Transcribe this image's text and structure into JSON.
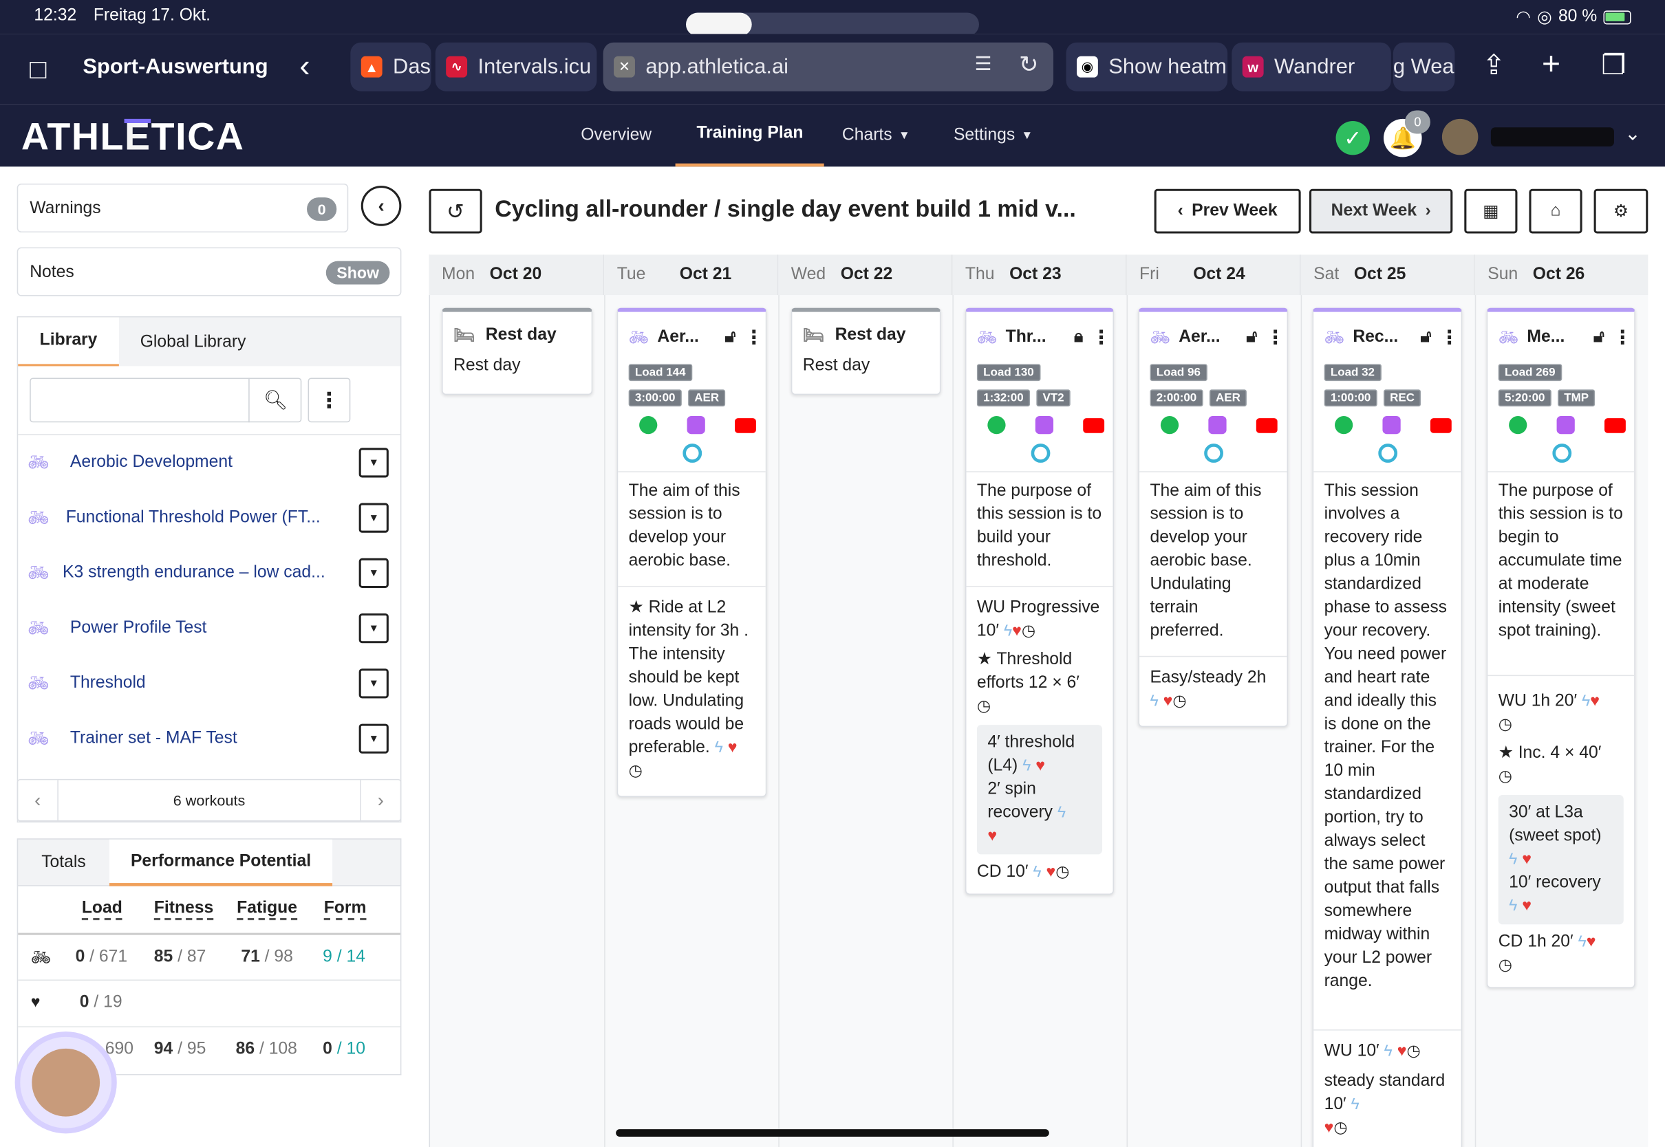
{
  "status_bar": {
    "time": "12:32",
    "date": "Freitag 17. Okt.",
    "battery": "80 %"
  },
  "browser": {
    "tab_group_title": "Sport-Auswertung",
    "tabs": [
      {
        "label": "Das",
        "color": "#ff5a1f"
      },
      {
        "label": "Intervals.icu",
        "color": "#d81b3a"
      },
      {
        "label": "app.athletica.ai",
        "color": "#777777"
      },
      {
        "label": "Show heatm",
        "color": "#ffffff"
      },
      {
        "label": "Wandrer",
        "color": "#c2185b"
      },
      {
        "label": "g Wea",
        "color": "#444444"
      }
    ]
  },
  "app": {
    "logo": "ATHLETICA",
    "nav": [
      {
        "label": "Overview"
      },
      {
        "label": "Training Plan"
      },
      {
        "label": "Charts"
      },
      {
        "label": "Settings"
      }
    ],
    "notification_count": "0"
  },
  "left": {
    "warnings_label": "Warnings",
    "warnings_count": "0",
    "notes_label": "Notes",
    "notes_button": "Show",
    "lib_tabs": [
      "Library",
      "Global Library"
    ],
    "search_placeholder": "",
    "library_items": [
      "Aerobic Development",
      "Functional Threshold Power (FT...",
      "K3 strength endurance – low cad...",
      "Power Profile Test",
      "Threshold",
      "Trainer set - MAF Test"
    ],
    "pager_text": "6 workouts",
    "perf_tabs": [
      "Totals",
      "Performance Potential"
    ],
    "perf_headers": [
      "Load",
      "Fitness",
      "Fatigue",
      "Form"
    ],
    "perf_rows": [
      {
        "icon": "bike-icon",
        "load_a": "0",
        "load_b": "671",
        "fit_a": "85",
        "fit_b": "87",
        "fat_a": "71",
        "fat_b": "98",
        "form_a": "9",
        "form_b": "14"
      },
      {
        "icon": "heart-rate-icon",
        "load_a": "0",
        "load_b": "19",
        "fit_a": "",
        "fit_b": "",
        "fat_a": "",
        "fat_b": "",
        "form_a": "",
        "form_b": ""
      },
      {
        "icon": "total-icon",
        "load_a": "",
        "load_b": "690",
        "fit_a": "94",
        "fit_b": "95",
        "fat_a": "86",
        "fat_b": "108",
        "form_a": "0",
        "form_b": "10"
      }
    ]
  },
  "plan": {
    "title": "Cycling all-rounder / single day event build 1 mid v...",
    "prev_week": "Prev Week",
    "next_week": "Next Week",
    "days": [
      {
        "dow": "Mon",
        "date": "Oct 20"
      },
      {
        "dow": "Tue",
        "date": "Oct 21"
      },
      {
        "dow": "Wed",
        "date": "Oct 22"
      },
      {
        "dow": "Thu",
        "date": "Oct 23"
      },
      {
        "dow": "Fri",
        "date": "Oct 24"
      },
      {
        "dow": "Sat",
        "date": "Oct 25"
      },
      {
        "dow": "Sun",
        "date": "Oct 26"
      }
    ],
    "rest_title": "Rest day",
    "rest_text": "Rest day",
    "workouts": [
      {
        "name": "Aer...",
        "load": "Load 144",
        "dur": "3:00:00",
        "zone": "AER",
        "desc": "The aim of this session is to develop your aerobic base.",
        "step1": "Ride at L2 intensity for 3h . The intensity should be kept low. Undulating roads would be preferable."
      },
      {
        "name": "Thr...",
        "load": "Load 130",
        "dur": "1:32:00",
        "zone": "VT2",
        "desc": "The purpose of this session is to build your threshold.",
        "wu": "WU Progressive 10′",
        "main": "Threshold efforts 12 × 6′",
        "sub1": "4′ threshold (L4)",
        "sub2": "2′ spin recovery",
        "cd": "CD 10′"
      },
      {
        "name": "Aer...",
        "load": "Load 96",
        "dur": "2:00:00",
        "zone": "AER",
        "desc": "The aim of this session is to develop your aerobic base. Undulating terrain preferred.",
        "step1": "Easy/steady 2h"
      },
      {
        "name": "Rec...",
        "load": "Load 32",
        "dur": "1:00:00",
        "zone": "REC",
        "desc": "This session involves a recovery ride plus a 10min standardized phase to assess your recovery. You need power and heart rate and ideally this is done on the trainer. For the 10 min standardized portion, try to always select the same power output that falls somewhere midway within your L2 power range.",
        "wu": "WU 10′",
        "step2": "steady standard 10′"
      },
      {
        "name": "Me...",
        "load": "Load 269",
        "dur": "5:20:00",
        "zone": "TMP",
        "desc": "The purpose of this session is to begin to accumulate time at moderate intensity (sweet spot training).",
        "wu": "WU 1h 20′",
        "main": "Inc. 4 × 40′",
        "sub1": "30′ at L3a (sweet spot)",
        "sub2": "10′ recovery",
        "cd": "CD 1h 20′"
      }
    ]
  },
  "colors": {
    "navy": "#1b1f3b",
    "accent_orange": "#f0a05a",
    "workout_purple": "#b49cf5",
    "green": "#2ebd5f"
  }
}
